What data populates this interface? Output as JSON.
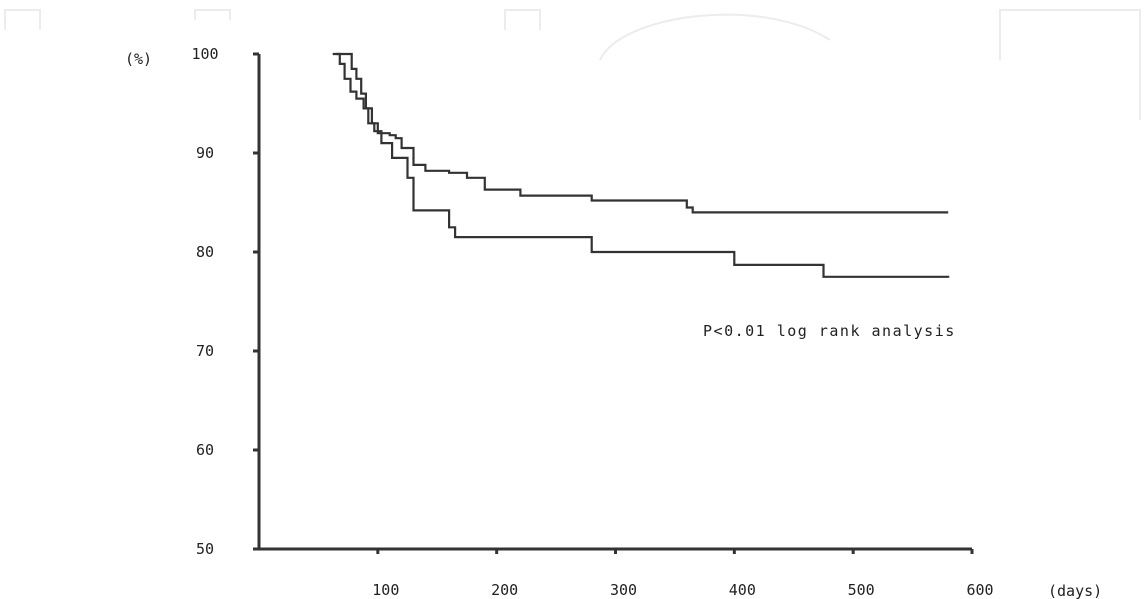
{
  "chart_data": {
    "type": "line",
    "step": true,
    "title": "",
    "xlabel": "(days)",
    "ylabel": "(%)",
    "xlim": [
      0,
      600
    ],
    "ylim": [
      50,
      100
    ],
    "x_ticks": [
      100,
      200,
      300,
      400,
      500,
      600
    ],
    "y_ticks": [
      100,
      90,
      80,
      70,
      60,
      50
    ],
    "grid": false,
    "legend": "none",
    "annotations": [
      {
        "text": "P<0.01 log rank analysis",
        "x": 480,
        "y": 71.5
      }
    ],
    "series": [
      {
        "color": "#333333",
        "x": [
          65,
          75,
          78,
          82,
          86,
          90,
          95,
          100,
          110,
          115,
          120,
          130,
          140,
          160,
          175,
          190,
          220,
          280,
          360,
          365,
          580
        ],
        "y": [
          100,
          100,
          98.5,
          97.5,
          96,
          94.5,
          93,
          92,
          91.8,
          91.5,
          90.5,
          88.8,
          88.2,
          88,
          87.5,
          86.3,
          85.7,
          85.2,
          84.5,
          84,
          84
        ]
      },
      {
        "color": "#333333",
        "x": [
          62,
          68,
          72,
          77,
          82,
          88,
          92,
          97,
          103,
          112,
          125,
          130,
          160,
          165,
          185,
          280,
          400,
          470,
          475,
          580
        ],
        "y": [
          100,
          99,
          97.5,
          96.2,
          95.5,
          94.5,
          93,
          92.2,
          91,
          89.5,
          87.5,
          84.2,
          82.5,
          81.5,
          81.5,
          80,
          78.7,
          78.7,
          77.5,
          77.4
        ]
      }
    ]
  }
}
